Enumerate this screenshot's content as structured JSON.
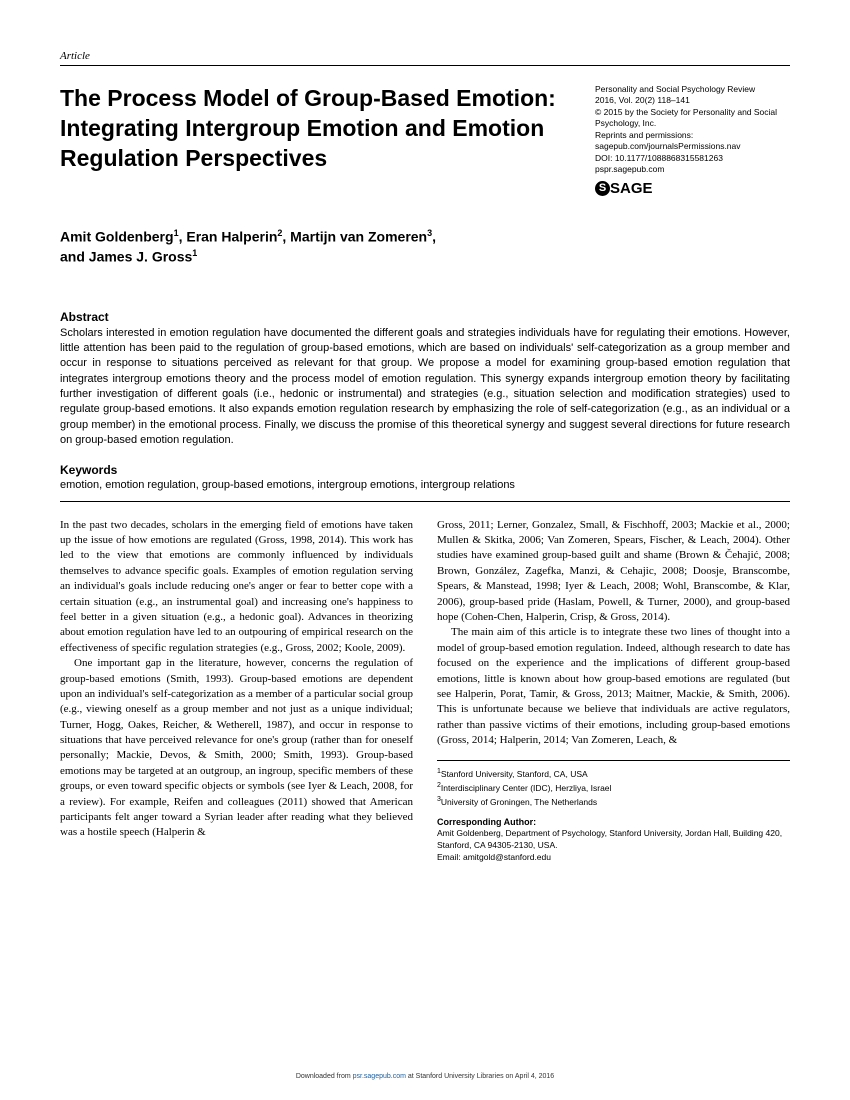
{
  "article_label": "Article",
  "title": "The Process Model of Group-Based Emotion: Integrating Intergroup Emotion and Emotion Regulation Perspectives",
  "meta": {
    "journal": "Personality and Social Psychology Review",
    "vol": "2016, Vol. 20(2) 118–141",
    "copyright": "© 2015 by the Society for Personality and Social Psychology, Inc.",
    "reprints_label": "Reprints and permissions:",
    "reprints_url": "sagepub.com/journalsPermissions.nav",
    "doi": "DOI: 10.1177/1088868315581263",
    "site": "pspr.sagepub.com",
    "sage": "SAGE"
  },
  "authors_line1": "Amit Goldenberg",
  "authors_sup1": "1",
  "authors_sep1": ", Eran Halperin",
  "authors_sup2": "2",
  "authors_sep2": ", Martijn van Zomeren",
  "authors_sup3": "3",
  "authors_sep3": ",",
  "authors_line2": "and James J. Gross",
  "authors_sup4": "1",
  "abstract_head": "Abstract",
  "abstract": "Scholars interested in emotion regulation have documented the different goals and strategies individuals have for regulating their emotions. However, little attention has been paid to the regulation of group-based emotions, which are based on individuals' self-categorization as a group member and occur in response to situations perceived as relevant for that group. We propose a model for examining group-based emotion regulation that integrates intergroup emotions theory and the process model of emotion regulation. This synergy expands intergroup emotion theory by facilitating further investigation of different goals (i.e., hedonic or instrumental) and strategies (e.g., situation selection and modification strategies) used to regulate group-based emotions. It also expands emotion regulation research by emphasizing the role of self-categorization (e.g., as an individual or a group member) in the emotional process. Finally, we discuss the promise of this theoretical synergy and suggest several directions for future research on group-based emotion regulation.",
  "keywords_head": "Keywords",
  "keywords": "emotion, emotion regulation, group-based emotions, intergroup emotions, intergroup relations",
  "col1_p1": "In the past two decades, scholars in the emerging field of emotions have taken up the issue of how emotions are regulated (Gross, 1998, 2014). This work has led to the view that emotions are commonly influenced by individuals themselves to advance specific goals. Examples of emotion regulation serving an individual's goals include reducing one's anger or fear to better cope with a certain situation (e.g., an instrumental goal) and increasing one's happiness to feel better in a given situation (e.g., a hedonic goal). Advances in theorizing about emotion regulation have led to an outpouring of empirical research on the effectiveness of specific regulation strategies (e.g., Gross, 2002; Koole, 2009).",
  "col1_p2": "One important gap in the literature, however, concerns the regulation of group-based emotions (Smith, 1993). Group-based emotions are dependent upon an individual's self-categorization as a member of a particular social group (e.g., viewing oneself as a group member and not just as a unique individual; Turner, Hogg, Oakes, Reicher, & Wetherell, 1987), and occur in response to situations that have perceived relevance for one's group (rather than for oneself personally; Mackie, Devos, & Smith, 2000; Smith, 1993). Group-based emotions may be targeted at an outgroup, an ingroup, specific members of these groups, or even toward specific objects or symbols (see Iyer & Leach, 2008, for a review). For example, Reifen and colleagues (2011) showed that American participants felt anger toward a Syrian leader after reading what they believed was a hostile speech (Halperin &",
  "col2_p1": "Gross, 2011; Lerner, Gonzalez, Small, & Fischhoff, 2003; Mackie et al., 2000; Mullen & Skitka, 2006; Van Zomeren, Spears, Fischer, & Leach, 2004). Other studies have examined group-based guilt and shame (Brown & Čehajić, 2008; Brown, González, Zagefka, Manzi, & Cehajic, 2008; Doosje, Branscombe, Spears, & Manstead, 1998; Iyer & Leach, 2008; Wohl, Branscombe, & Klar, 2006), group-based pride (Haslam, Powell, & Turner, 2000), and group-based hope (Cohen-Chen, Halperin, Crisp, & Gross, 2014).",
  "col2_p2": "The main aim of this article is to integrate these two lines of thought into a model of group-based emotion regulation. Indeed, although research to date has focused on the experience and the implications of different group-based emotions, little is known about how group-based emotions are regulated (but see Halperin, Porat, Tamir, & Gross, 2013; Maitner, Mackie, & Smith, 2006). This is unfortunate because we believe that individuals are active regulators, rather than passive victims of their emotions, including group-based emotions (Gross, 2014; Halperin, 2014; Van Zomeren, Leach, &",
  "affil1": "Stanford University, Stanford, CA, USA",
  "affil2": "Interdisciplinary Center (IDC), Herzliya, Israel",
  "affil3": "University of Groningen, The Netherlands",
  "corr_head": "Corresponding Author:",
  "corr_text": "Amit Goldenberg, Department of Psychology, Stanford University, Jordan Hall, Building 420, Stanford, CA 94305-2130, USA.",
  "corr_email": "Email: amitgold@stanford.edu",
  "footer_pre": "Downloaded from ",
  "footer_link": "psr.sagepub.com",
  "footer_post": " at Stanford University Libraries on April 4, 2016"
}
